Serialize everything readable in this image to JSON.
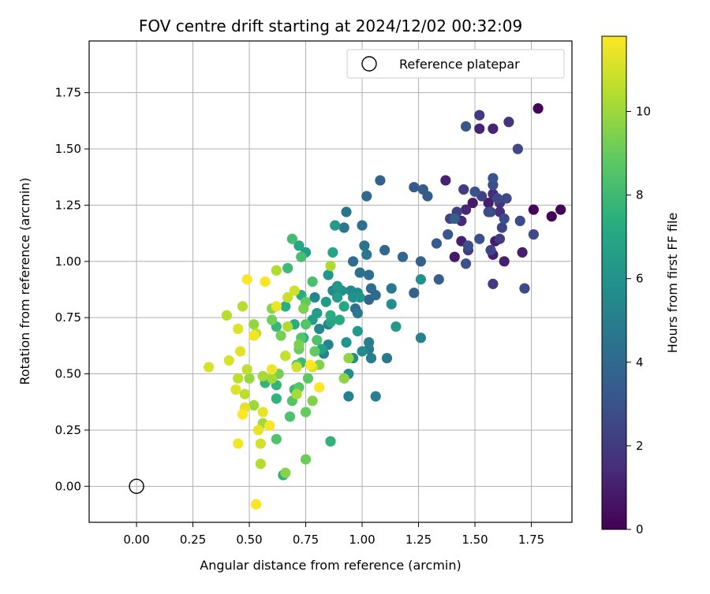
{
  "chart_data": {
    "type": "scatter",
    "title": "FOV centre drift starting at 2024/12/02 00:32:09",
    "xlabel": "Angular distance from reference (arcmin)",
    "ylabel": "Rotation from reference (arcmin)",
    "xlim": [
      -0.21,
      1.93
    ],
    "ylim": [
      -0.16,
      1.98
    ],
    "xticks": [
      "0.00",
      "0.25",
      "0.50",
      "0.75",
      "1.00",
      "1.25",
      "1.50",
      "1.75"
    ],
    "yticks": [
      "0.00",
      "0.25",
      "0.50",
      "0.75",
      "1.00",
      "1.25",
      "1.50",
      "1.75"
    ],
    "grid": true,
    "legend": {
      "position": "top-right",
      "entries": [
        "Reference platepar"
      ]
    },
    "reference_point": {
      "x": 0.0,
      "y": 0.0
    },
    "colorbar": {
      "label": "Hours from first FF file",
      "range": [
        0,
        11.8
      ],
      "ticks": [
        "0",
        "2",
        "4",
        "6",
        "8",
        "10"
      ],
      "colormap": "viridis"
    },
    "points": [
      [
        1.78,
        1.68,
        0.1
      ],
      [
        1.76,
        1.23,
        0.1
      ],
      [
        1.84,
        1.2,
        0.1
      ],
      [
        1.88,
        1.23,
        0.1
      ],
      [
        1.49,
        1.26,
        0.8
      ],
      [
        1.56,
        1.26,
        0.9
      ],
      [
        1.41,
        1.02,
        0.8
      ],
      [
        1.59,
        1.09,
        0.9
      ],
      [
        1.63,
        1.0,
        1.0
      ],
      [
        1.71,
        1.04,
        1.0
      ],
      [
        1.44,
        1.09,
        1.0
      ],
      [
        1.58,
        1.03,
        1.0
      ],
      [
        1.37,
        1.36,
        1.1
      ],
      [
        1.52,
        1.59,
        1.2
      ],
      [
        1.58,
        1.59,
        1.2
      ],
      [
        1.46,
        1.23,
        1.3
      ],
      [
        1.44,
        1.18,
        1.4
      ],
      [
        1.58,
        1.3,
        1.5
      ],
      [
        1.61,
        1.22,
        1.6
      ],
      [
        1.61,
        1.26,
        1.7
      ],
      [
        1.65,
        1.62,
        1.8
      ],
      [
        1.52,
        1.65,
        1.9
      ],
      [
        1.58,
        0.9,
        2.0
      ],
      [
        1.61,
        1.1,
        2.0
      ],
      [
        1.47,
        1.05,
        2.1
      ],
      [
        1.45,
        1.32,
        2.1
      ],
      [
        1.42,
        1.22,
        2.2
      ],
      [
        1.39,
        1.19,
        2.3
      ],
      [
        1.53,
        1.29,
        2.3
      ],
      [
        1.57,
        1.05,
        2.4
      ],
      [
        1.62,
        1.15,
        2.4
      ],
      [
        1.6,
        1.28,
        2.5
      ],
      [
        1.57,
        1.22,
        2.5
      ],
      [
        1.69,
        1.5,
        2.5
      ],
      [
        1.72,
        0.88,
        2.6
      ],
      [
        1.76,
        1.12,
        2.6
      ],
      [
        1.64,
        1.28,
        2.6
      ],
      [
        1.7,
        1.18,
        2.7
      ],
      [
        1.63,
        1.19,
        2.7
      ],
      [
        1.56,
        1.22,
        2.8
      ],
      [
        1.58,
        1.34,
        2.8
      ],
      [
        1.47,
        1.07,
        2.8
      ],
      [
        1.52,
        1.1,
        2.9
      ],
      [
        1.46,
        0.99,
        2.9
      ],
      [
        1.5,
        1.31,
        3.0
      ],
      [
        1.46,
        1.6,
        3.1
      ],
      [
        1.58,
        1.37,
        3.1
      ],
      [
        1.38,
        1.12,
        3.2
      ],
      [
        1.33,
        1.08,
        3.3
      ],
      [
        1.23,
        1.33,
        3.3
      ],
      [
        1.27,
        1.32,
        3.4
      ],
      [
        1.29,
        1.29,
        3.4
      ],
      [
        1.41,
        1.19,
        3.5
      ],
      [
        1.34,
        0.92,
        3.5
      ],
      [
        1.26,
        1.0,
        3.6
      ],
      [
        1.08,
        1.36,
        3.7
      ],
      [
        1.23,
        0.86,
        3.8
      ],
      [
        1.18,
        1.02,
        3.9
      ],
      [
        1.03,
        0.83,
        3.9
      ],
      [
        1.1,
        1.05,
        4.0
      ],
      [
        1.02,
        1.29,
        4.0
      ],
      [
        1.06,
        0.85,
        4.1
      ],
      [
        1.04,
        0.88,
        4.1
      ],
      [
        1.03,
        0.94,
        4.2
      ],
      [
        0.96,
        1.0,
        4.2
      ],
      [
        0.97,
        0.79,
        4.3
      ],
      [
        0.99,
        0.95,
        4.3
      ],
      [
        1.0,
        1.16,
        4.4
      ],
      [
        0.93,
        1.22,
        4.5
      ],
      [
        1.01,
        1.07,
        4.5
      ],
      [
        1.02,
        1.03,
        4.6
      ],
      [
        0.92,
        1.15,
        4.6
      ],
      [
        1.13,
        0.88,
        4.7
      ],
      [
        0.98,
        0.77,
        4.7
      ],
      [
        1.11,
        0.57,
        4.8
      ],
      [
        1.03,
        0.61,
        4.8
      ],
      [
        1.04,
        0.57,
        4.9
      ],
      [
        1.06,
        0.4,
        5.0
      ],
      [
        1.03,
        0.64,
        5.0
      ],
      [
        0.94,
        0.4,
        5.1
      ],
      [
        1.26,
        0.66,
        5.1
      ],
      [
        0.85,
        0.72,
        5.2
      ],
      [
        0.83,
        0.59,
        5.2
      ],
      [
        0.85,
        0.63,
        5.3
      ],
      [
        0.79,
        0.84,
        5.4
      ],
      [
        0.81,
        0.7,
        5.4
      ],
      [
        0.87,
        0.87,
        5.5
      ],
      [
        0.95,
        0.87,
        5.5
      ],
      [
        0.98,
        0.86,
        5.6
      ],
      [
        1.0,
        0.6,
        5.6
      ],
      [
        0.96,
        0.57,
        5.7
      ],
      [
        0.94,
        0.5,
        5.7
      ],
      [
        1.13,
        0.81,
        5.8
      ],
      [
        1.26,
        0.92,
        5.9
      ],
      [
        0.91,
        0.87,
        5.9
      ],
      [
        0.96,
        0.84,
        6.0
      ],
      [
        0.99,
        0.84,
        6.1
      ],
      [
        0.93,
        0.64,
        6.1
      ],
      [
        0.85,
        0.94,
        6.2
      ],
      [
        0.89,
        0.89,
        6.2
      ],
      [
        0.98,
        0.69,
        6.3
      ],
      [
        1.15,
        0.71,
        6.3
      ],
      [
        0.88,
        1.16,
        6.4
      ],
      [
        0.84,
        0.82,
        6.4
      ],
      [
        0.89,
        0.84,
        6.5
      ],
      [
        0.8,
        0.77,
        6.5
      ],
      [
        0.75,
        1.04,
        6.6
      ],
      [
        0.78,
        0.74,
        6.6
      ],
      [
        0.82,
        0.61,
        6.7
      ],
      [
        0.86,
        0.73,
        6.8
      ],
      [
        0.72,
        1.07,
        6.9
      ],
      [
        0.87,
        1.04,
        6.9
      ],
      [
        0.92,
        0.8,
        7.0
      ],
      [
        0.9,
        0.74,
        7.1
      ],
      [
        0.86,
        0.76,
        7.2
      ],
      [
        0.74,
        0.66,
        7.2
      ],
      [
        0.7,
        0.72,
        7.3
      ],
      [
        0.73,
        0.85,
        7.3
      ],
      [
        0.66,
        0.8,
        7.4
      ],
      [
        0.65,
        0.05,
        7.5
      ],
      [
        0.86,
        0.2,
        7.6
      ],
      [
        0.62,
        0.39,
        7.6
      ],
      [
        0.62,
        0.45,
        7.7
      ],
      [
        0.57,
        0.46,
        7.7
      ],
      [
        0.62,
        0.71,
        7.8
      ],
      [
        0.7,
        0.43,
        7.8
      ],
      [
        0.73,
        0.55,
        7.9
      ],
      [
        0.67,
        0.97,
        8.0
      ],
      [
        0.69,
        1.1,
        8.1
      ],
      [
        0.73,
        1.02,
        8.2
      ],
      [
        0.78,
        0.91,
        8.3
      ],
      [
        0.8,
        0.65,
        8.4
      ],
      [
        0.68,
        0.31,
        8.4
      ],
      [
        0.62,
        0.21,
        8.5
      ],
      [
        0.73,
        0.66,
        8.5
      ],
      [
        0.75,
        0.72,
        8.6
      ],
      [
        0.69,
        0.38,
        8.6
      ],
      [
        0.72,
        0.44,
        8.7
      ],
      [
        0.71,
        0.54,
        8.7
      ],
      [
        0.76,
        0.48,
        8.8
      ],
      [
        0.79,
        0.6,
        8.9
      ],
      [
        0.75,
        0.82,
        8.9
      ],
      [
        0.72,
        0.61,
        9.0
      ],
      [
        0.75,
        0.33,
        9.0
      ],
      [
        0.75,
        0.12,
        9.1
      ],
      [
        0.6,
        0.74,
        9.2
      ],
      [
        0.66,
        0.58,
        9.2
      ],
      [
        0.63,
        0.5,
        9.3
      ],
      [
        0.64,
        0.67,
        9.3
      ],
      [
        0.72,
        0.63,
        9.4
      ],
      [
        0.74,
        0.79,
        9.4
      ],
      [
        0.78,
        0.38,
        9.5
      ],
      [
        0.81,
        0.54,
        9.5
      ],
      [
        0.66,
        0.06,
        9.6
      ],
      [
        0.6,
        0.79,
        9.6
      ],
      [
        0.92,
        0.48,
        9.7
      ],
      [
        0.94,
        0.57,
        9.8
      ],
      [
        0.52,
        0.72,
        9.8
      ],
      [
        0.5,
        0.48,
        9.9
      ],
      [
        0.52,
        0.36,
        10.0
      ],
      [
        0.56,
        0.28,
        10.1
      ],
      [
        0.6,
        0.48,
        10.1
      ],
      [
        0.56,
        0.49,
        10.2
      ],
      [
        0.71,
        0.41,
        10.2
      ],
      [
        0.67,
        0.71,
        10.3
      ],
      [
        0.86,
        0.98,
        10.3
      ],
      [
        0.62,
        0.96,
        10.4
      ],
      [
        0.55,
        0.1,
        10.4
      ],
      [
        0.47,
        0.8,
        10.5
      ],
      [
        0.4,
        0.76,
        10.5
      ],
      [
        0.45,
        0.48,
        10.6
      ],
      [
        0.48,
        0.41,
        10.6
      ],
      [
        0.49,
        0.52,
        10.7
      ],
      [
        0.53,
        0.68,
        10.7
      ],
      [
        0.66,
        0.58,
        10.8
      ],
      [
        0.67,
        0.84,
        10.8
      ],
      [
        0.7,
        0.87,
        10.9
      ],
      [
        0.71,
        0.53,
        10.9
      ],
      [
        0.78,
        0.53,
        11.0
      ],
      [
        0.55,
        0.19,
        11.0
      ],
      [
        0.32,
        0.53,
        11.1
      ],
      [
        0.41,
        0.56,
        11.1
      ],
      [
        0.44,
        0.43,
        11.2
      ],
      [
        0.45,
        0.7,
        11.2
      ],
      [
        0.46,
        0.6,
        11.3
      ],
      [
        0.48,
        0.35,
        11.3
      ],
      [
        0.54,
        0.25,
        11.4
      ],
      [
        0.56,
        0.33,
        11.4
      ],
      [
        0.6,
        0.52,
        11.5
      ],
      [
        0.62,
        0.8,
        11.5
      ],
      [
        0.45,
        0.19,
        11.6
      ],
      [
        0.52,
        0.67,
        11.6
      ],
      [
        0.57,
        0.91,
        11.7
      ],
      [
        0.59,
        0.27,
        11.7
      ],
      [
        0.53,
        -0.08,
        11.7
      ],
      [
        0.49,
        0.92,
        11.8
      ],
      [
        0.77,
        0.54,
        11.8
      ],
      [
        0.81,
        0.44,
        11.8
      ],
      [
        0.47,
        0.32,
        11.8
      ]
    ]
  }
}
